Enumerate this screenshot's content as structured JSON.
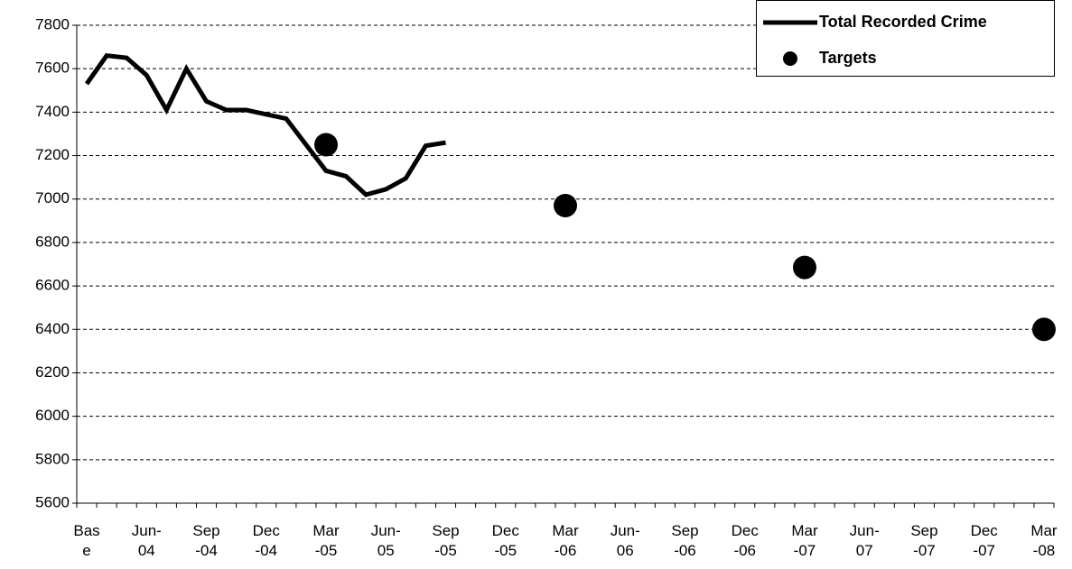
{
  "chart_data": {
    "type": "line",
    "categories": [
      "Base",
      null,
      null,
      "Jun-04",
      null,
      null,
      "Sep-04",
      null,
      null,
      "Dec-04",
      null,
      null,
      "Mar-05",
      null,
      null,
      "Jun-05",
      null,
      null,
      "Sep-05",
      null,
      null,
      "Dec-05",
      null,
      null,
      "Mar-06",
      null,
      null,
      "Jun-06",
      null,
      null,
      "Sep-06",
      null,
      null,
      "Dec-06",
      null,
      null,
      "Mar-07",
      null,
      null,
      "Jun-07",
      null,
      null,
      "Sep-07",
      null,
      null,
      "Dec-07",
      null,
      null,
      "Mar-08"
    ],
    "series": [
      {
        "name": "Total Recorded Crime",
        "type": "line",
        "color": "#000000",
        "values": [
          7530,
          7660,
          7650,
          7570,
          7410,
          7600,
          7450,
          7410,
          7410,
          7390,
          7370,
          7250,
          7130,
          7105,
          7020,
          7045,
          7095,
          7245,
          7260,
          null,
          null,
          null,
          null,
          null,
          null,
          null,
          null,
          null,
          null,
          null,
          null,
          null,
          null,
          null,
          null,
          null,
          null,
          null,
          null,
          null,
          null,
          null,
          null,
          null,
          null,
          null,
          null,
          null,
          null
        ]
      },
      {
        "name": "Targets",
        "type": "scatter",
        "color": "#000000",
        "values": [
          null,
          null,
          null,
          null,
          null,
          null,
          null,
          null,
          null,
          null,
          null,
          null,
          7250,
          null,
          null,
          null,
          null,
          null,
          null,
          null,
          null,
          null,
          null,
          null,
          6970,
          null,
          null,
          null,
          null,
          null,
          null,
          null,
          null,
          null,
          null,
          null,
          6685,
          null,
          null,
          null,
          null,
          null,
          null,
          null,
          null,
          null,
          null,
          null,
          6400
        ]
      }
    ],
    "ylim": [
      5600,
      7800
    ],
    "yticks": [
      5600,
      5800,
      6000,
      6200,
      6400,
      6600,
      6800,
      7000,
      7200,
      7400,
      7600,
      7800
    ],
    "grid": true,
    "legend": "upper right"
  }
}
